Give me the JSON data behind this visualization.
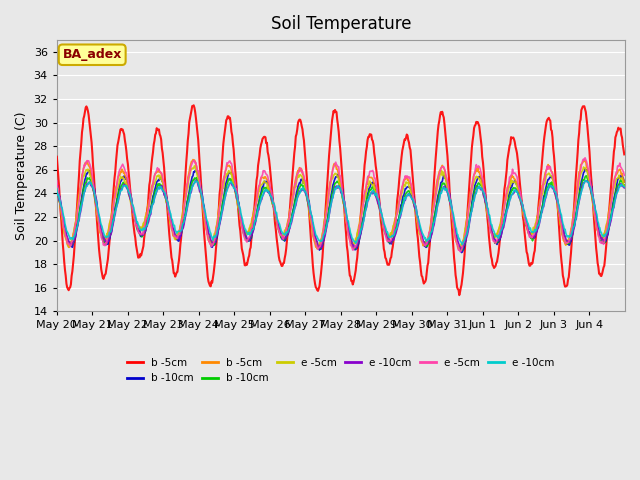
{
  "title": "Soil Temperature",
  "ylabel": "Soil Temperature (C)",
  "ylim": [
    14,
    37
  ],
  "yticks": [
    14,
    16,
    18,
    20,
    22,
    24,
    26,
    28,
    30,
    32,
    34,
    36
  ],
  "annotation_text": "BA_adex",
  "annotation_color": "#8B0000",
  "annotation_bg": "#FFFF99",
  "annotation_border": "#CCAA00",
  "series": [
    {
      "label": "b -5cm",
      "color": "#FF0000",
      "lw": 1.5
    },
    {
      "label": "b -10cm",
      "color": "#0000CC",
      "lw": 1.2
    },
    {
      "label": "b -5cm",
      "color": "#FF8800",
      "lw": 1.2
    },
    {
      "label": "b -10cm",
      "color": "#00CC00",
      "lw": 1.2
    },
    {
      "label": "e -5cm",
      "color": "#CCCC00",
      "lw": 1.2
    },
    {
      "label": "e -10cm",
      "color": "#8800CC",
      "lw": 1.2
    },
    {
      "label": "e -5cm",
      "color": "#FF44AA",
      "lw": 1.2
    },
    {
      "label": "e -10cm",
      "color": "#00CCCC",
      "lw": 1.2
    }
  ],
  "x_tick_labels": [
    "May 20",
    "May 21",
    "May 22",
    "May 23",
    "May 24",
    "May 25",
    "May 26",
    "May 27",
    "May 28",
    "May 29",
    "May 30",
    "May 31",
    "Jun 1",
    "Jun 2",
    "Jun 3",
    "Jun 4"
  ],
  "n_days": 16,
  "pts_per_day": 48
}
